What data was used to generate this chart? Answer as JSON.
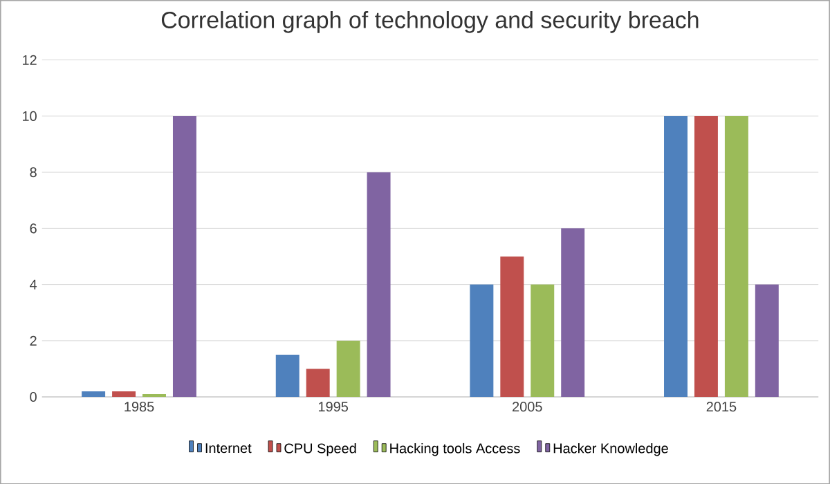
{
  "chart_data": {
    "type": "bar",
    "title": "Correlation graph of technology and security breach",
    "categories": [
      "1985",
      "1995",
      "2005",
      "2015"
    ],
    "series": [
      {
        "name": "Internet",
        "color": "#4f81bd",
        "values": [
          0.2,
          1.5,
          4,
          10
        ]
      },
      {
        "name": "CPU Speed",
        "color": "#c0504d",
        "values": [
          0.2,
          1,
          5,
          10
        ]
      },
      {
        "name": "Hacking tools Access",
        "color": "#9bbb59",
        "values": [
          0.1,
          2,
          4,
          10
        ]
      },
      {
        "name": "Hacker Knowledge",
        "color": "#8064a2",
        "values": [
          10,
          8,
          6,
          4
        ]
      }
    ],
    "ylim": [
      0,
      12
    ],
    "yticks": [
      0,
      2,
      4,
      6,
      8,
      10,
      12
    ],
    "grid": "y",
    "legend": "bottom"
  }
}
